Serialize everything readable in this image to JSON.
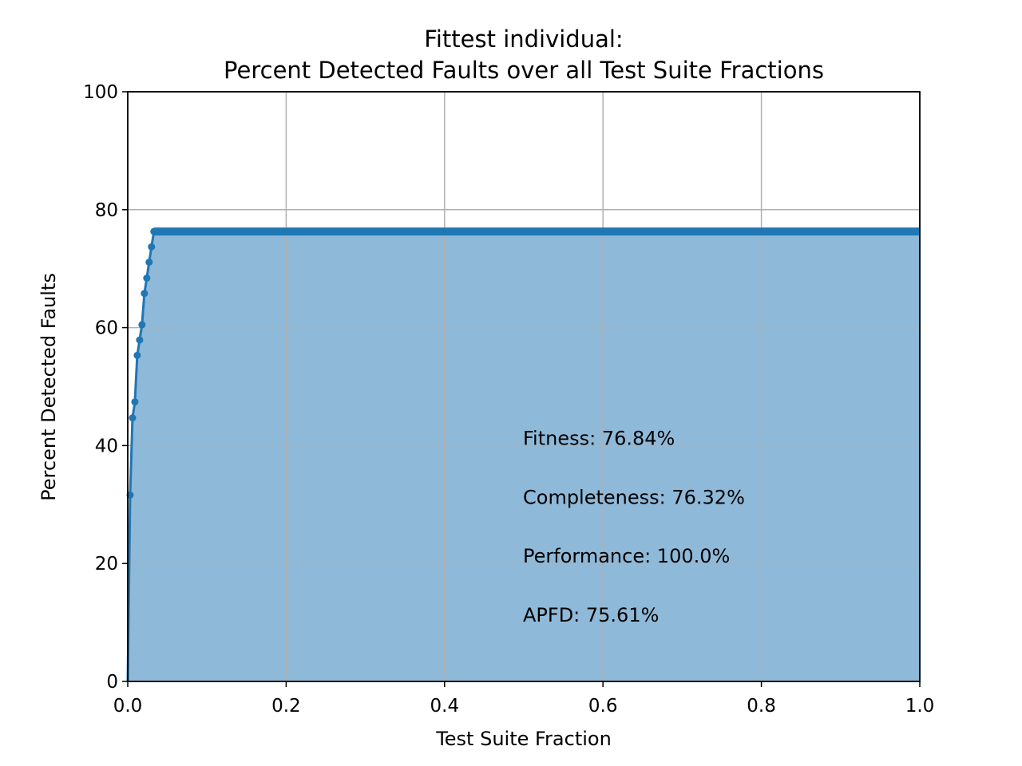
{
  "chart_data": {
    "type": "area",
    "title_lines": [
      "Fittest individual:",
      "Percent Detected Faults over all Test Suite Fractions"
    ],
    "xlabel": "Test Suite Fraction",
    "ylabel": "Percent Detected Faults",
    "xlim": [
      0,
      1
    ],
    "ylim": [
      0,
      100
    ],
    "x_ticks": [
      "0.0",
      "0.2",
      "0.4",
      "0.6",
      "0.8",
      "1.0"
    ],
    "y_ticks": [
      "0",
      "20",
      "40",
      "60",
      "80",
      "100"
    ],
    "grid": true,
    "line_color": "#1f77b4",
    "fill_color": "#8fb9d9",
    "series": [
      {
        "x": [
          0.0,
          0.003,
          0.006,
          0.009,
          0.012,
          0.015,
          0.018,
          0.021,
          0.024,
          0.027,
          0.03,
          0.033
        ],
        "y": [
          0.0,
          31.6,
          44.7,
          47.4,
          55.3,
          57.9,
          60.5,
          65.8,
          68.4,
          71.1,
          73.7,
          76.3
        ]
      }
    ],
    "plateau": {
      "y": 76.3,
      "x_start": 0.033,
      "x_end": 1.0
    },
    "annotations": [
      {
        "text": "Fitness: 76.84%",
        "x": 0.5,
        "y": 40
      },
      {
        "text": "Completeness: 76.32%",
        "x": 0.5,
        "y": 30
      },
      {
        "text": "Performance: 100.0%",
        "x": 0.5,
        "y": 20
      },
      {
        "text": "APFD: 75.61%",
        "x": 0.5,
        "y": 10
      }
    ]
  }
}
